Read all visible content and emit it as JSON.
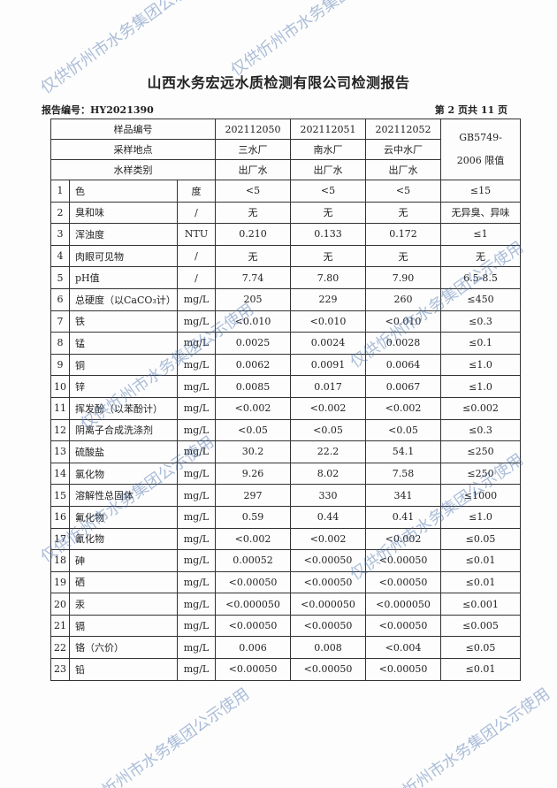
{
  "title": "山西水务宏远水质检测有限公司检测报告",
  "report_no": "报告编号：HY2021390",
  "page_no": "第 2 页共 11 页",
  "watermark": "仅供忻州市水务集团公示使用",
  "header": {
    "sample_no_label": "样品编号",
    "site_label": "采样地点",
    "type_label": "水样类别",
    "sample_nos": [
      "202112050",
      "202112051",
      "202112052"
    ],
    "sites": [
      "三水厂",
      "南水厂",
      "云中水厂"
    ],
    "types": [
      "出厂水",
      "出厂水",
      "出厂水"
    ],
    "limit_label": "GB5749-2006 限值"
  },
  "rows": [
    {
      "no": "1",
      "name": "色",
      "unit": "度",
      "v": [
        "<5",
        "<5",
        "<5"
      ],
      "limit": "≤15"
    },
    {
      "no": "2",
      "name": "臭和味",
      "unit": "/",
      "v": [
        "无",
        "无",
        "无"
      ],
      "limit": "无异臭、异味"
    },
    {
      "no": "3",
      "name": "浑浊度",
      "unit": "NTU",
      "v": [
        "0.210",
        "0.133",
        "0.172"
      ],
      "limit": "≤1"
    },
    {
      "no": "4",
      "name": "肉眼可见物",
      "unit": "/",
      "v": [
        "无",
        "无",
        "无"
      ],
      "limit": "无"
    },
    {
      "no": "5",
      "name": "pH值",
      "unit": "/",
      "v": [
        "7.74",
        "7.80",
        "7.90"
      ],
      "limit": "6.5-8.5"
    },
    {
      "no": "6",
      "name": "总硬度（以CaCO₃计）",
      "unit": "mg/L",
      "v": [
        "205",
        "229",
        "260"
      ],
      "limit": "≤450"
    },
    {
      "no": "7",
      "name": "铁",
      "unit": "mg/L",
      "v": [
        "<0.010",
        "<0.010",
        "<0.010"
      ],
      "limit": "≤0.3"
    },
    {
      "no": "8",
      "name": "锰",
      "unit": "mg/L",
      "v": [
        "0.0025",
        "0.0024",
        "0.0028"
      ],
      "limit": "≤0.1"
    },
    {
      "no": "9",
      "name": "铜",
      "unit": "mg/L",
      "v": [
        "0.0062",
        "0.0091",
        "0.0064"
      ],
      "limit": "≤1.0"
    },
    {
      "no": "10",
      "name": "锌",
      "unit": "mg/L",
      "v": [
        "0.0085",
        "0.017",
        "0.0067"
      ],
      "limit": "≤1.0"
    },
    {
      "no": "11",
      "name": "挥发酚（以苯酚计）",
      "unit": "mg/L",
      "v": [
        "<0.002",
        "<0.002",
        "<0.002"
      ],
      "limit": "≤0.002"
    },
    {
      "no": "12",
      "name": "阴离子合成洗涤剂",
      "unit": "mg/L",
      "v": [
        "<0.05",
        "<0.05",
        "<0.05"
      ],
      "limit": "≤0.3"
    },
    {
      "no": "13",
      "name": "硫酸盐",
      "unit": "mg/L",
      "v": [
        "30.2",
        "22.2",
        "54.1"
      ],
      "limit": "≤250"
    },
    {
      "no": "14",
      "name": "氯化物",
      "unit": "mg/L",
      "v": [
        "9.26",
        "8.02",
        "7.58"
      ],
      "limit": "≤250"
    },
    {
      "no": "15",
      "name": "溶解性总固体",
      "unit": "mg/L",
      "v": [
        "297",
        "330",
        "341"
      ],
      "limit": "≤1000"
    },
    {
      "no": "16",
      "name": "氟化物",
      "unit": "mg/L",
      "v": [
        "0.59",
        "0.44",
        "0.41"
      ],
      "limit": "≤1.0"
    },
    {
      "no": "17",
      "name": "氰化物",
      "unit": "mg/L",
      "v": [
        "<0.002",
        "<0.002",
        "<0.002"
      ],
      "limit": "≤0.05"
    },
    {
      "no": "18",
      "name": "砷",
      "unit": "mg/L",
      "v": [
        "0.00052",
        "<0.00050",
        "<0.00050"
      ],
      "limit": "≤0.01"
    },
    {
      "no": "19",
      "name": "硒",
      "unit": "mg/L",
      "v": [
        "<0.00050",
        "<0.00050",
        "<0.00050"
      ],
      "limit": "≤0.01"
    },
    {
      "no": "20",
      "name": "汞",
      "unit": "mg/L",
      "v": [
        "<0.000050",
        "<0.000050",
        "<0.000050"
      ],
      "limit": "≤0.001"
    },
    {
      "no": "21",
      "name": "镉",
      "unit": "mg/L",
      "v": [
        "<0.00050",
        "<0.00050",
        "<0.00050"
      ],
      "limit": "≤0.005"
    },
    {
      "no": "22",
      "name": "铬（六价）",
      "unit": "mg/L",
      "v": [
        "0.006",
        "0.008",
        "<0.004"
      ],
      "limit": "≤0.05"
    },
    {
      "no": "23",
      "name": "铅",
      "unit": "mg/L",
      "v": [
        "<0.00050",
        "<0.00050",
        "<0.00050"
      ],
      "limit": "≤0.01"
    }
  ]
}
